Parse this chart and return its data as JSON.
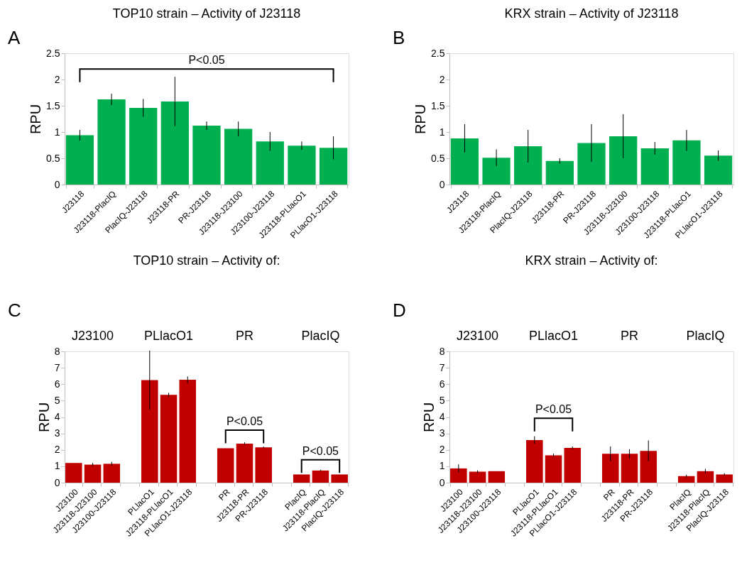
{
  "chart_data": [
    {
      "type": "bar",
      "title": "TOP10 strain – Activity of J23118",
      "ylabel": "RPU",
      "color": "#00b050",
      "ylim": [
        0,
        2.5
      ],
      "yticks": [
        0,
        0.5,
        1,
        1.5,
        2,
        2.5
      ],
      "categories": [
        "J23118",
        "J23118-PlacIQ",
        "PlacIQ-J23118",
        "J23118-PR",
        "PR-J23118",
        "J23118-J23100",
        "J23100-J23118",
        "J23118-PLlacO1",
        "PLlacO1-J23118"
      ],
      "values": [
        0.94,
        1.62,
        1.46,
        1.58,
        1.12,
        1.06,
        0.82,
        0.74,
        0.7
      ],
      "errors": [
        0.1,
        0.11,
        0.17,
        0.47,
        0.08,
        0.14,
        0.18,
        0.08,
        0.22
      ],
      "annotations": [
        "A",
        "P<0.05"
      ]
    },
    {
      "type": "bar",
      "title": "KRX strain – Activity of J23118",
      "ylabel": "RPU",
      "color": "#00b050",
      "ylim": [
        0,
        2.5
      ],
      "yticks": [
        0,
        0.5,
        1,
        1.5,
        2,
        2.5
      ],
      "categories": [
        "J23118",
        "J23118-PlacIQ",
        "PlacIQ-J23118",
        "J23118-PR",
        "PR-J23118",
        "J23118-J23100",
        "J23100-J23118",
        "J23118-PLlacO1",
        "PLlacO1-J23118"
      ],
      "values": [
        0.88,
        0.51,
        0.73,
        0.45,
        0.79,
        0.92,
        0.69,
        0.84,
        0.55
      ],
      "errors": [
        0.27,
        0.16,
        0.31,
        0.05,
        0.36,
        0.42,
        0.12,
        0.2,
        0.1
      ],
      "annotations": [
        "B"
      ]
    },
    {
      "type": "bar",
      "title": "TOP10 strain – Activity of:",
      "ylabel": "RPU",
      "color": "#c00000",
      "ylim": [
        0,
        8
      ],
      "yticks": [
        0,
        1,
        2,
        3,
        4,
        5,
        6,
        7,
        8
      ],
      "categories": [
        "J23100",
        "J23118-J23100",
        "J23100-J23118",
        null,
        "PLlacO1",
        "J23118-PLlacO1",
        "PLlacO1-J23118",
        null,
        "PR",
        "J23118-PR",
        "PR-J23118",
        null,
        "PlacIQ",
        "J23118-PlacIQ",
        "PlacIQ-J23118"
      ],
      "values": [
        1.2,
        1.1,
        1.15,
        null,
        6.25,
        5.35,
        6.27,
        null,
        2.1,
        2.38,
        2.15,
        null,
        0.5,
        0.74,
        0.5
      ],
      "errors": [
        null,
        0.1,
        0.12,
        null,
        1.8,
        0.12,
        0.2,
        null,
        null,
        0.08,
        0.05,
        null,
        null,
        0.05,
        null
      ],
      "annotations": [
        "C",
        "J23100",
        "PLlacO1",
        "PR",
        "PlacIQ",
        "P<0.05",
        "P<0.05"
      ]
    },
    {
      "type": "bar",
      "title": "KRX strain – Activity of:",
      "ylabel": "RPU",
      "color": "#c00000",
      "ylim": [
        0,
        8
      ],
      "yticks": [
        0,
        1,
        2,
        3,
        4,
        5,
        6,
        7,
        8
      ],
      "categories": [
        "J23100",
        "J23118-J23100",
        "J23100-J23118",
        null,
        "PLlacO1",
        "J23118-PLlacO1",
        "PLlacO1-J23118",
        null,
        "PR",
        "J23118-PR",
        "PR-J23118",
        null,
        "PlacIQ",
        "J23118-PlacIQ",
        "PlacIQ-J23118"
      ],
      "values": [
        0.87,
        0.67,
        0.7,
        null,
        2.6,
        1.67,
        2.12,
        null,
        1.76,
        1.76,
        1.94,
        null,
        0.4,
        0.7,
        0.5
      ],
      "errors": [
        0.25,
        0.08,
        null,
        null,
        0.23,
        0.1,
        0.08,
        null,
        0.45,
        0.28,
        0.63,
        null,
        0.08,
        0.14,
        0.08
      ],
      "annotations": [
        "D",
        "J23100",
        "PLlacO1",
        "PR",
        "PlacIQ",
        "P<0.05"
      ]
    }
  ]
}
